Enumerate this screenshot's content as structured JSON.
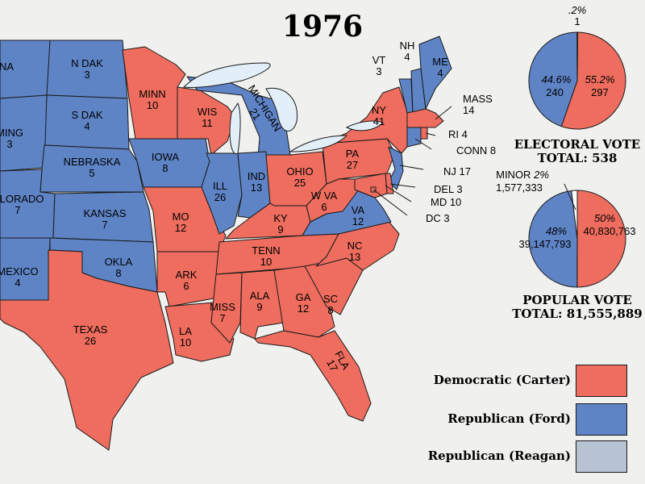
{
  "title": "1976",
  "colors": {
    "dem": "#ee6d5e",
    "rep": "#5e84c6",
    "reagan": "#b7c3d3",
    "water": "#e3eff8"
  },
  "states": [
    {
      "key": "NA",
      "label": "NA",
      "votes": "",
      "party": "rep"
    },
    {
      "key": "NDAK",
      "label": "N DAK",
      "votes": "3",
      "party": "rep"
    },
    {
      "key": "SDAK",
      "label": "S DAK",
      "votes": "4",
      "party": "rep"
    },
    {
      "key": "MING",
      "label": "MING",
      "votes": "3",
      "party": "rep"
    },
    {
      "key": "NEB",
      "label": "NEBRASKA",
      "votes": "5",
      "party": "rep"
    },
    {
      "key": "COLO",
      "label": "OLORADO",
      "votes": "7",
      "party": "rep"
    },
    {
      "key": "KAN",
      "label": "KANSAS",
      "votes": "7",
      "party": "rep"
    },
    {
      "key": "NMEX",
      "label": "MEXICO",
      "votes": "4",
      "party": "rep"
    },
    {
      "key": "OKLA",
      "label": "OKLA",
      "votes": "8",
      "party": "rep"
    },
    {
      "key": "TEX",
      "label": "TEXAS",
      "votes": "26",
      "party": "dem"
    },
    {
      "key": "MINN",
      "label": "MINN",
      "votes": "10",
      "party": "dem"
    },
    {
      "key": "IOWA",
      "label": "IOWA",
      "votes": "8",
      "party": "rep"
    },
    {
      "key": "MO",
      "label": "MO",
      "votes": "12",
      "party": "dem"
    },
    {
      "key": "ARK",
      "label": "ARK",
      "votes": "6",
      "party": "dem"
    },
    {
      "key": "LA",
      "label": "LA",
      "votes": "10",
      "party": "dem"
    },
    {
      "key": "WIS",
      "label": "WIS",
      "votes": "11",
      "party": "dem"
    },
    {
      "key": "ILL",
      "label": "ILL",
      "votes": "26",
      "party": "rep"
    },
    {
      "key": "MICH",
      "label": "MICHIGAN",
      "votes": "21",
      "party": "rep"
    },
    {
      "key": "IND",
      "label": "IND",
      "votes": "13",
      "party": "rep"
    },
    {
      "key": "OHIO",
      "label": "OHIO",
      "votes": "25",
      "party": "dem"
    },
    {
      "key": "KY",
      "label": "KY",
      "votes": "9",
      "party": "dem"
    },
    {
      "key": "TENN",
      "label": "TENN",
      "votes": "10",
      "party": "dem"
    },
    {
      "key": "MISS",
      "label": "MISS",
      "votes": "7",
      "party": "dem"
    },
    {
      "key": "ALA",
      "label": "ALA",
      "votes": "9",
      "party": "dem"
    },
    {
      "key": "GA",
      "label": "GA",
      "votes": "12",
      "party": "dem"
    },
    {
      "key": "FLA",
      "label": "FLA",
      "votes": "17",
      "party": "dem"
    },
    {
      "key": "SC",
      "label": "SC",
      "votes": "8",
      "party": "dem"
    },
    {
      "key": "NC",
      "label": "NC",
      "votes": "13",
      "party": "dem"
    },
    {
      "key": "VA",
      "label": "VA",
      "votes": "12",
      "party": "rep"
    },
    {
      "key": "WVA",
      "label": "W VA",
      "votes": "6",
      "party": "dem"
    },
    {
      "key": "PA",
      "label": "PA",
      "votes": "27",
      "party": "dem"
    },
    {
      "key": "NY",
      "label": "NY",
      "votes": "41",
      "party": "dem"
    },
    {
      "key": "VT",
      "label": "VT",
      "votes": "3",
      "party": "rep"
    },
    {
      "key": "NH",
      "label": "NH",
      "votes": "4",
      "party": "rep"
    },
    {
      "key": "ME",
      "label": "ME",
      "votes": "4",
      "party": "rep"
    },
    {
      "key": "MASS",
      "label": "MASS",
      "votes": "14",
      "party": "dem"
    },
    {
      "key": "RI",
      "label": "RI 4",
      "votes": "",
      "party": "dem"
    },
    {
      "key": "CONN",
      "label": "CONN 8",
      "votes": "",
      "party": "rep"
    },
    {
      "key": "NJ",
      "label": "NJ 17",
      "votes": "",
      "party": "rep"
    },
    {
      "key": "DEL",
      "label": "DEL 3",
      "votes": "",
      "party": "dem"
    },
    {
      "key": "MD",
      "label": "MD 10",
      "votes": "",
      "party": "dem"
    },
    {
      "key": "DC",
      "label": "DC 3",
      "votes": "",
      "party": "dem"
    }
  ],
  "electoral": {
    "minor_pct": ".2%",
    "minor_votes": "1",
    "rep_pct": "44.6%",
    "rep_votes": "240",
    "dem_pct": "55.2%",
    "dem_votes": "297",
    "title": "ELECTORAL VOTE",
    "total": "TOTAL:  538",
    "chart_data": {
      "type": "pie",
      "values": [
        297,
        240,
        1
      ],
      "labels": [
        "Democratic (Carter)",
        "Republican (Ford)",
        "Minor"
      ]
    }
  },
  "popular": {
    "minor_label": "MINOR",
    "minor_pct": "2%",
    "minor_votes": "1,577,333",
    "rep_pct": "48%",
    "rep_votes": "39,147,793",
    "dem_pct": "50%",
    "dem_votes": "40,830,763",
    "title": "POPULAR VOTE",
    "total": "TOTAL:  81,555,889",
    "chart_data": {
      "type": "pie",
      "values": [
        40830763,
        39147793,
        1577333
      ],
      "labels": [
        "Democratic (Carter)",
        "Republican (Ford)",
        "Minor"
      ]
    }
  },
  "legend": [
    {
      "label": "Democratic (Carter)",
      "color": "#ee6d5e"
    },
    {
      "label": "Republican (Ford)",
      "color": "#5e84c6"
    },
    {
      "label": "Republican (Reagan)",
      "color": "#b7c3d3"
    }
  ]
}
